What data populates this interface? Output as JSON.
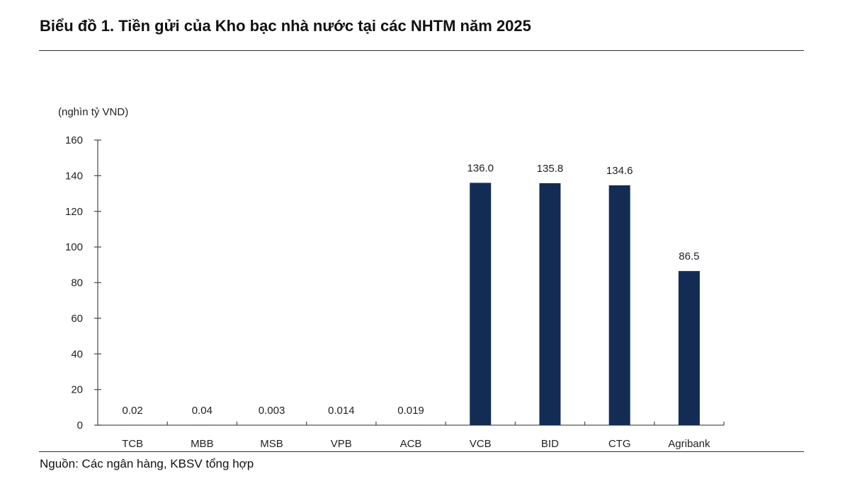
{
  "chart_data": {
    "type": "bar",
    "title": "Biểu đồ 1. Tiền gửi của Kho bạc nhà nước tại các NHTM năm 2025",
    "ylabel": "(nghìn tỷ VND)",
    "xlabel": "",
    "categories": [
      "TCB",
      "MBB",
      "MSB",
      "VPB",
      "ACB",
      "VCB",
      "BID",
      "CTG",
      "Agribank"
    ],
    "values": [
      0.02,
      0.04,
      0.003,
      0.014,
      0.019,
      136.0,
      135.8,
      134.6,
      86.5
    ],
    "data_labels": [
      "0.02",
      "0.04",
      "0.003",
      "0.014",
      "0.019",
      "136.0",
      "135.8",
      "134.6",
      "86.5"
    ],
    "ylim": [
      0,
      160
    ],
    "yticks": [
      0,
      20,
      40,
      60,
      80,
      100,
      120,
      140,
      160
    ],
    "grid": false,
    "legend": "none",
    "bar_color": "#132c54"
  },
  "source": "Nguồn: Các ngân hàng, KBSV tổng hợp"
}
